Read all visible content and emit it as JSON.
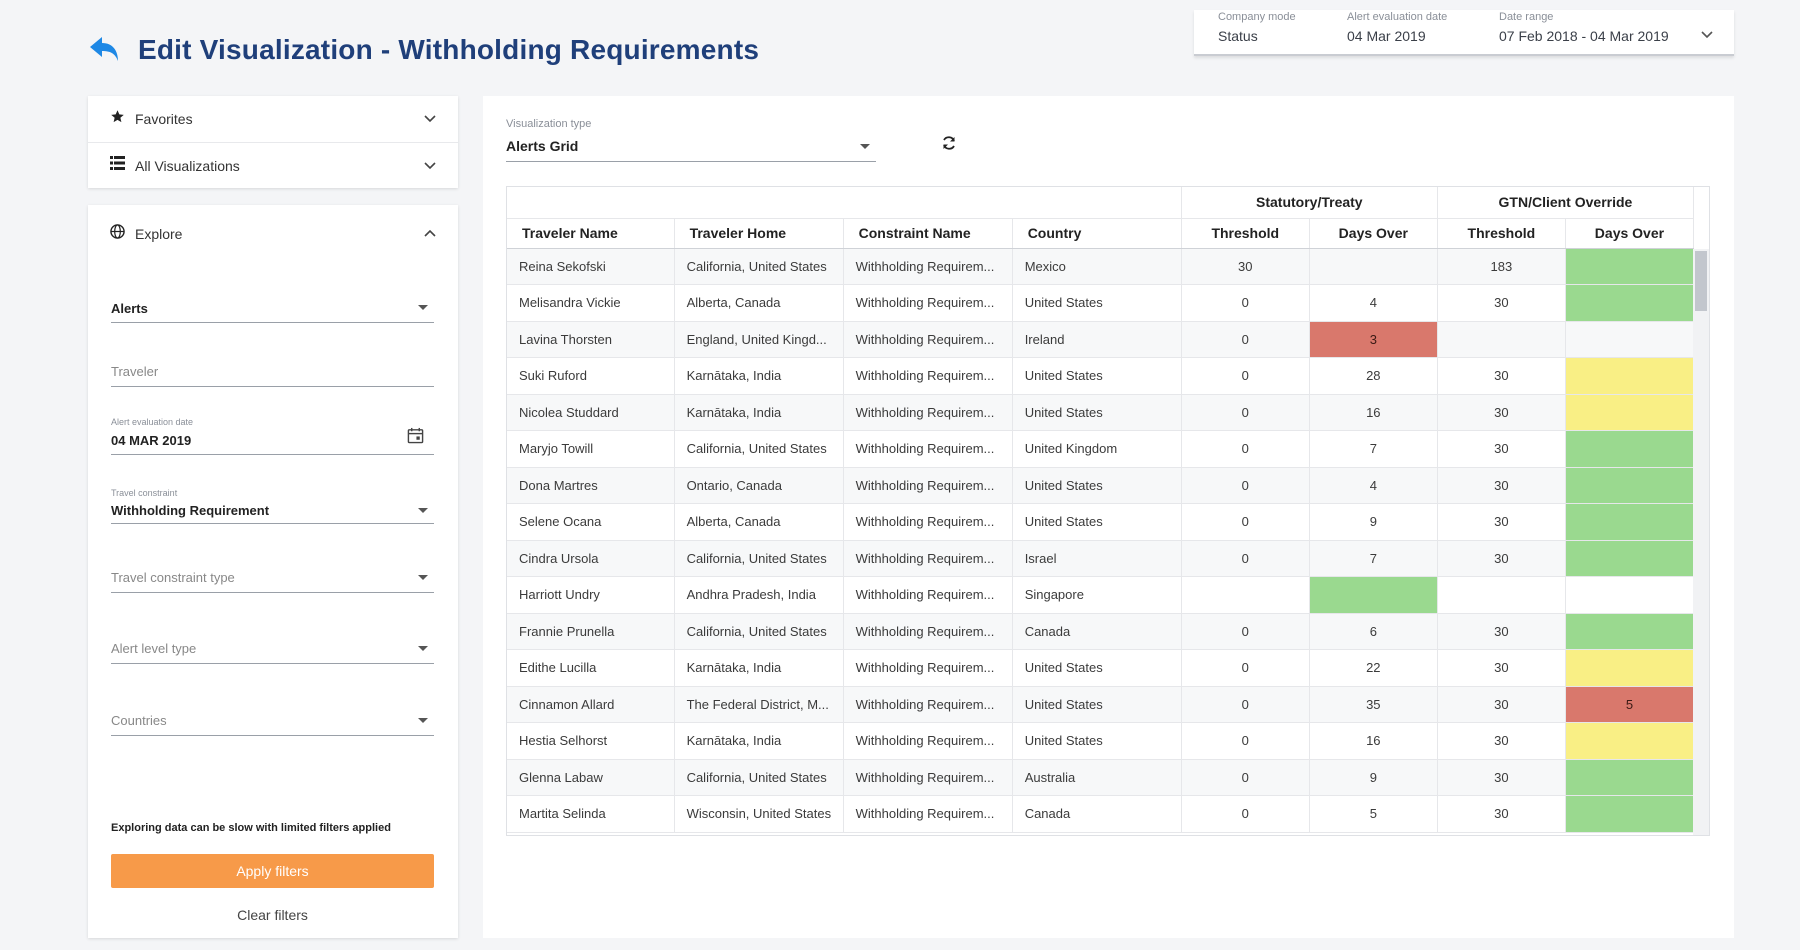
{
  "page": {
    "title": "Edit Visualization - Withholding Requirements"
  },
  "context": {
    "company_mode": {
      "label": "Company mode",
      "value": "Status"
    },
    "alert_date": {
      "label": "Alert evaluation date",
      "value": "04 Mar 2019"
    },
    "date_range": {
      "label": "Date range",
      "value": "07 Feb 2018 - 04 Mar 2019"
    }
  },
  "sidebar": {
    "favorites": "Favorites",
    "all_visualizations": "All Visualizations",
    "explore": "Explore",
    "filters": {
      "alerts": {
        "value": "Alerts"
      },
      "traveler": {
        "placeholder": "Traveler"
      },
      "alert_date": {
        "label": "Alert evaluation date",
        "value": "04 MAR 2019"
      },
      "travel_constraint": {
        "label": "Travel constraint",
        "value": "Withholding Requirement"
      },
      "constraint_type": {
        "placeholder": "Travel constraint type"
      },
      "alert_level": {
        "placeholder": "Alert level type"
      },
      "countries": {
        "placeholder": "Countries"
      }
    },
    "notice": "Exploring data can be slow with limited filters applied",
    "apply_label": "Apply filters",
    "clear_label": "Clear filters"
  },
  "main": {
    "viz_type": {
      "label": "Visualization type",
      "value": "Alerts Grid"
    },
    "grid": {
      "groups": {
        "statutory": "Statutory/Treaty",
        "gtn": "GTN/Client Override"
      },
      "columns": [
        "Traveler Name",
        "Traveler Home",
        "Constraint Name",
        "Country",
        "Threshold",
        "Days Over",
        "Threshold",
        "Days Over"
      ],
      "rows": [
        {
          "name": "Reina Sekofski",
          "home": "California, United States",
          "constraint": "Withholding Requirem...",
          "country": "Mexico",
          "st_threshold": "30",
          "st_days": "",
          "st_status": "",
          "gtn_threshold": "183",
          "gtn_days": "",
          "gtn_status": "green"
        },
        {
          "name": "Melisandra Vickie",
          "home": "Alberta, Canada",
          "constraint": "Withholding Requirem...",
          "country": "United States",
          "st_threshold": "0",
          "st_days": "4",
          "st_status": "",
          "gtn_threshold": "30",
          "gtn_days": "",
          "gtn_status": "green"
        },
        {
          "name": "Lavina Thorsten",
          "home": "England, United Kingd...",
          "constraint": "Withholding Requirem...",
          "country": "Ireland",
          "st_threshold": "0",
          "st_days": "3",
          "st_status": "red",
          "gtn_threshold": "",
          "gtn_days": "",
          "gtn_status": ""
        },
        {
          "name": "Suki Ruford",
          "home": "Karnātaka, India",
          "constraint": "Withholding Requirem...",
          "country": "United States",
          "st_threshold": "0",
          "st_days": "28",
          "st_status": "",
          "gtn_threshold": "30",
          "gtn_days": "",
          "gtn_status": "yellow"
        },
        {
          "name": "Nicolea Studdard",
          "home": "Karnātaka, India",
          "constraint": "Withholding Requirem...",
          "country": "United States",
          "st_threshold": "0",
          "st_days": "16",
          "st_status": "",
          "gtn_threshold": "30",
          "gtn_days": "",
          "gtn_status": "yellow"
        },
        {
          "name": "Maryjo Towill",
          "home": "California, United States",
          "constraint": "Withholding Requirem...",
          "country": "United Kingdom",
          "st_threshold": "0",
          "st_days": "7",
          "st_status": "",
          "gtn_threshold": "30",
          "gtn_days": "",
          "gtn_status": "green"
        },
        {
          "name": "Dona Martres",
          "home": "Ontario, Canada",
          "constraint": "Withholding Requirem...",
          "country": "United States",
          "st_threshold": "0",
          "st_days": "4",
          "st_status": "",
          "gtn_threshold": "30",
          "gtn_days": "",
          "gtn_status": "green"
        },
        {
          "name": "Selene Ocana",
          "home": "Alberta, Canada",
          "constraint": "Withholding Requirem...",
          "country": "United States",
          "st_threshold": "0",
          "st_days": "9",
          "st_status": "",
          "gtn_threshold": "30",
          "gtn_days": "",
          "gtn_status": "green"
        },
        {
          "name": "Cindra Ursola",
          "home": "California, United States",
          "constraint": "Withholding Requirem...",
          "country": "Israel",
          "st_threshold": "0",
          "st_days": "7",
          "st_status": "",
          "gtn_threshold": "30",
          "gtn_days": "",
          "gtn_status": "green"
        },
        {
          "name": "Harriott Undry",
          "home": "Andhra Pradesh, India",
          "constraint": "Withholding Requirem...",
          "country": "Singapore",
          "st_threshold": "",
          "st_days": "",
          "st_status": "green",
          "gtn_threshold": "",
          "gtn_days": "",
          "gtn_status": ""
        },
        {
          "name": "Frannie Prunella",
          "home": "California, United States",
          "constraint": "Withholding Requirem...",
          "country": "Canada",
          "st_threshold": "0",
          "st_days": "6",
          "st_status": "",
          "gtn_threshold": "30",
          "gtn_days": "",
          "gtn_status": "green"
        },
        {
          "name": "Edithe Lucilla",
          "home": "Karnātaka, India",
          "constraint": "Withholding Requirem...",
          "country": "United States",
          "st_threshold": "0",
          "st_days": "22",
          "st_status": "",
          "gtn_threshold": "30",
          "gtn_days": "",
          "gtn_status": "yellow"
        },
        {
          "name": "Cinnamon Allard",
          "home": "The Federal District, M...",
          "constraint": "Withholding Requirem...",
          "country": "United States",
          "st_threshold": "0",
          "st_days": "35",
          "st_status": "",
          "gtn_threshold": "30",
          "gtn_days": "5",
          "gtn_status": "red"
        },
        {
          "name": "Hestia Selhorst",
          "home": "Karnātaka, India",
          "constraint": "Withholding Requirem...",
          "country": "United States",
          "st_threshold": "0",
          "st_days": "16",
          "st_status": "",
          "gtn_threshold": "30",
          "gtn_days": "",
          "gtn_status": "yellow"
        },
        {
          "name": "Glenna Labaw",
          "home": "California, United States",
          "constraint": "Withholding Requirem...",
          "country": "Australia",
          "st_threshold": "0",
          "st_days": "9",
          "st_status": "",
          "gtn_threshold": "30",
          "gtn_days": "",
          "gtn_status": "green"
        },
        {
          "name": "Martita Selinda",
          "home": "Wisconsin, United States",
          "constraint": "Withholding Requirem...",
          "country": "Canada",
          "st_threshold": "0",
          "st_days": "5",
          "st_status": "",
          "gtn_threshold": "30",
          "gtn_days": "",
          "gtn_status": "green"
        }
      ]
    }
  },
  "colors": {
    "title": "#1f3f7a",
    "accent": "#1e88e5",
    "apply": "#f79a49",
    "green": "#9ad98f",
    "yellow": "#f9ef85",
    "red": "#d9786c"
  }
}
